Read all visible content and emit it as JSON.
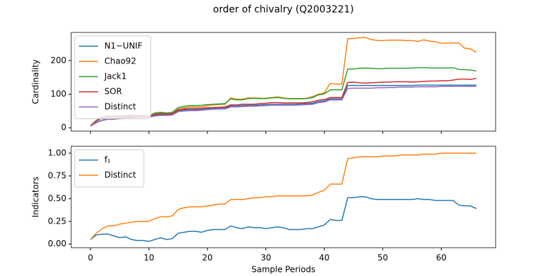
{
  "title": "order of chivalry (Q2003221)",
  "chart_data": [
    {
      "type": "line",
      "ylabel": "Cardinality",
      "legend": "upper left",
      "xlim": [
        -3.3,
        69.3
      ],
      "ylim": [
        -10,
        284
      ],
      "yticks": [
        0,
        100,
        200
      ],
      "x": [
        0,
        1,
        2,
        3,
        4,
        5,
        6,
        7,
        8,
        9,
        10,
        11,
        12,
        13,
        14,
        15,
        16,
        17,
        18,
        19,
        20,
        21,
        22,
        23,
        24,
        25,
        26,
        27,
        28,
        29,
        30,
        31,
        32,
        33,
        34,
        35,
        36,
        37,
        38,
        39,
        40,
        41,
        42,
        43,
        44,
        45,
        46,
        47,
        48,
        49,
        50,
        51,
        52,
        53,
        54,
        55,
        56,
        57,
        58,
        59,
        60,
        61,
        62,
        63,
        64,
        65,
        66
      ],
      "series": [
        {
          "name": "N1−UNIF",
          "color": "#1f77b4",
          "values": [
            5,
            16,
            23,
            27,
            27,
            29,
            30,
            32,
            33,
            33,
            33,
            37,
            39,
            39,
            40,
            51,
            53,
            54,
            54,
            55,
            57,
            58,
            59,
            59,
            65,
            65,
            66,
            67,
            67,
            68,
            69,
            70,
            70,
            70,
            70,
            70,
            71,
            72,
            73,
            78,
            80,
            86,
            86,
            86,
            126,
            126,
            126,
            126,
            126,
            126,
            126,
            126,
            126,
            126,
            126,
            126,
            127,
            127,
            127,
            127,
            127,
            127,
            127,
            127,
            127,
            127,
            127
          ]
        },
        {
          "name": "Chao92",
          "color": "#ff7f0e",
          "values": [
            6,
            20,
            30,
            35,
            34,
            35,
            35,
            36,
            35,
            35,
            34,
            42,
            45,
            44,
            44,
            56,
            60,
            62,
            62,
            62,
            66,
            68,
            69,
            70,
            89,
            85,
            85,
            89,
            89,
            88,
            88,
            90,
            92,
            89,
            87,
            87,
            87,
            88,
            93,
            100,
            104,
            132,
            130,
            130,
            265,
            266,
            268,
            269,
            263,
            260,
            260,
            261,
            261,
            261,
            260,
            260,
            257,
            262,
            258,
            256,
            252,
            252,
            252,
            253,
            237,
            235,
            225
          ]
        },
        {
          "name": "Jack1",
          "color": "#2ca02c",
          "values": [
            6,
            22,
            32,
            35,
            34,
            35,
            36,
            37,
            36,
            36,
            35,
            44,
            46,
            44,
            46,
            60,
            64,
            66,
            66,
            67,
            69,
            70,
            71,
            72,
            86,
            83,
            83,
            87,
            88,
            87,
            87,
            89,
            90,
            88,
            86,
            86,
            86,
            87,
            90,
            98,
            101,
            113,
            113,
            113,
            175,
            175,
            177,
            178,
            177,
            176,
            176,
            177,
            177,
            177,
            177,
            178,
            179,
            179,
            178,
            178,
            178,
            178,
            179,
            174,
            173,
            172,
            169
          ]
        },
        {
          "name": "SOR",
          "color": "#d62728",
          "values": [
            6,
            20,
            30,
            32,
            31,
            33,
            34,
            34,
            34,
            34,
            33,
            40,
            42,
            41,
            42,
            53,
            56,
            57,
            57,
            58,
            60,
            60,
            61,
            62,
            68,
            68,
            70,
            70,
            70,
            72,
            73,
            75,
            75,
            74,
            74,
            74,
            74,
            75,
            77,
            82,
            84,
            90,
            90,
            90,
            135,
            136,
            134,
            133,
            134,
            135,
            136,
            136,
            137,
            137,
            137,
            136,
            137,
            138,
            139,
            139,
            140,
            140,
            142,
            145,
            145,
            144,
            147
          ]
        },
        {
          "name": "Distinct",
          "color": "#9467bd",
          "values": [
            5,
            15,
            22,
            25,
            25,
            27,
            28,
            30,
            31,
            31,
            31,
            35,
            37,
            37,
            38,
            48,
            50,
            51,
            51,
            52,
            54,
            55,
            56,
            56,
            62,
            62,
            63,
            64,
            64,
            65,
            66,
            67,
            67,
            67,
            67,
            67,
            68,
            69,
            70,
            75,
            77,
            83,
            83,
            83,
            117,
            118,
            118,
            118,
            118,
            119,
            119,
            120,
            120,
            121,
            121,
            121,
            122,
            122,
            122,
            122,
            123,
            123,
            123,
            123,
            123,
            123,
            123
          ]
        }
      ]
    },
    {
      "type": "line",
      "ylabel": "Indicators",
      "xlabel": "Sample Periods",
      "legend": "upper left",
      "xlim": [
        -3.3,
        69.3
      ],
      "ylim": [
        -0.04,
        1.076
      ],
      "yticks": [
        {
          "value": 0,
          "label": "0.00"
        },
        0.25,
        {
          "value": 0.5,
          "label": "0.50"
        },
        0.75,
        {
          "value": 1,
          "label": "1.00"
        }
      ],
      "xticks": [
        0,
        10,
        20,
        30,
        40,
        50,
        60
      ],
      "x": [
        0,
        1,
        2,
        3,
        4,
        5,
        6,
        7,
        8,
        9,
        10,
        11,
        12,
        13,
        14,
        15,
        16,
        17,
        18,
        19,
        20,
        21,
        22,
        23,
        24,
        25,
        26,
        27,
        28,
        29,
        30,
        31,
        32,
        33,
        34,
        35,
        36,
        37,
        38,
        39,
        40,
        41,
        42,
        43,
        44,
        45,
        46,
        47,
        48,
        49,
        50,
        51,
        52,
        53,
        54,
        55,
        56,
        57,
        58,
        59,
        60,
        61,
        62,
        63,
        64,
        65,
        66
      ],
      "series": [
        {
          "name": "f₁",
          "color": "#1f77b4",
          "values": [
            0.05,
            0.1,
            0.11,
            0.11,
            0.09,
            0.07,
            0.08,
            0.05,
            0.04,
            0.04,
            0.03,
            0.05,
            0.07,
            0.05,
            0.06,
            0.12,
            0.13,
            0.14,
            0.14,
            0.13,
            0.15,
            0.16,
            0.16,
            0.16,
            0.2,
            0.18,
            0.17,
            0.19,
            0.18,
            0.18,
            0.17,
            0.18,
            0.19,
            0.18,
            0.16,
            0.16,
            0.16,
            0.17,
            0.17,
            0.19,
            0.21,
            0.27,
            0.26,
            0.26,
            0.51,
            0.51,
            0.52,
            0.52,
            0.5,
            0.49,
            0.49,
            0.49,
            0.49,
            0.49,
            0.49,
            0.49,
            0.5,
            0.49,
            0.49,
            0.48,
            0.48,
            0.48,
            0.48,
            0.43,
            0.42,
            0.42,
            0.39
          ]
        },
        {
          "name": "Distinct",
          "color": "#ff7f0e",
          "values": [
            0.05,
            0.12,
            0.17,
            0.2,
            0.2,
            0.22,
            0.23,
            0.24,
            0.25,
            0.25,
            0.25,
            0.28,
            0.3,
            0.3,
            0.31,
            0.38,
            0.4,
            0.41,
            0.41,
            0.41,
            0.42,
            0.43,
            0.44,
            0.44,
            0.49,
            0.49,
            0.49,
            0.5,
            0.51,
            0.51,
            0.52,
            0.52,
            0.53,
            0.53,
            0.53,
            0.53,
            0.53,
            0.53,
            0.54,
            0.57,
            0.59,
            0.66,
            0.66,
            0.66,
            0.94,
            0.95,
            0.96,
            0.96,
            0.96,
            0.96,
            0.97,
            0.97,
            0.97,
            0.98,
            0.98,
            0.98,
            0.98,
            0.99,
            0.99,
            0.99,
            1.0,
            1.0,
            1.0,
            1.0,
            1.0,
            1.0,
            1.0
          ]
        }
      ]
    }
  ]
}
